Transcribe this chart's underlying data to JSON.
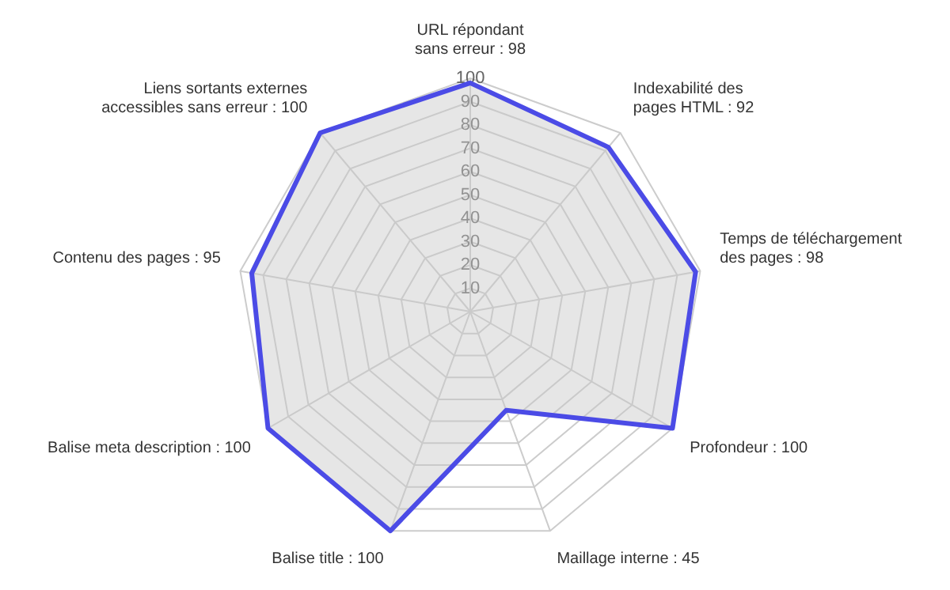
{
  "chart_data": {
    "type": "radar",
    "categories": [
      "URL répondant\nsans erreur : 98",
      "Indexabilité des\npages HTML : 92",
      "Temps de téléchargement\ndes pages : 98",
      "Profondeur : 100",
      "Maillage interne : 45",
      "Balise title : 100",
      "Balise meta description : 100",
      "Contenu des pages : 95",
      "Liens sortants externes\naccessibles sans erreur : 100"
    ],
    "series": [
      {
        "color": "#4b4be6",
        "values": [
          98,
          92,
          98,
          100,
          45,
          100,
          100,
          95,
          100
        ]
      }
    ],
    "ylim": [
      0,
      100
    ],
    "yticks": [
      10,
      20,
      30,
      40,
      50,
      60,
      70,
      80,
      90,
      100
    ],
    "grid": true,
    "legend": false,
    "marker": "none"
  }
}
